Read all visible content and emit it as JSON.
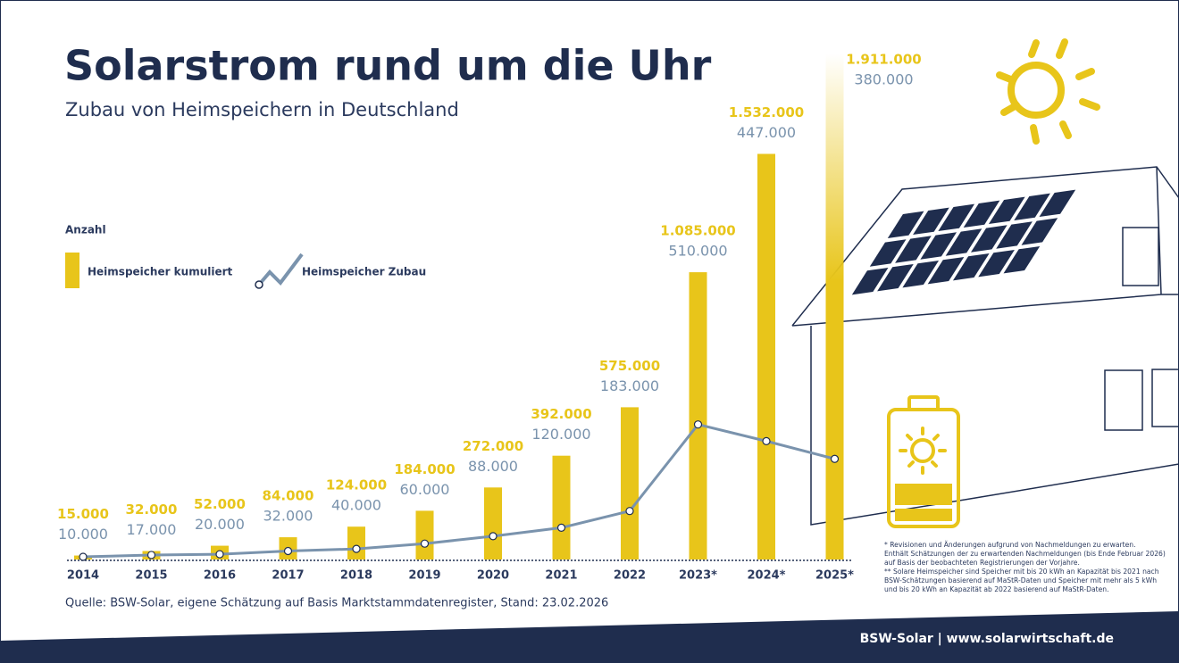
{
  "header": {
    "title": "Solarstrom rund um die Uhr",
    "subtitle": "Zubau von Heimspeichern in Deutschland"
  },
  "chart_data": {
    "type": "bar",
    "legend_title": "Anzahl",
    "categories": [
      "2014",
      "2015",
      "2016",
      "2017",
      "2018",
      "2019",
      "2020",
      "2021",
      "2022",
      "2023*",
      "2024*",
      "2025*"
    ],
    "series": [
      {
        "name": "Heimspeicher kumuliert",
        "type": "bar",
        "color": "#e8c51a",
        "values": [
          15000,
          32000,
          52000,
          84000,
          124000,
          184000,
          272000,
          392000,
          575000,
          1085000,
          1532000,
          1911000
        ],
        "value_labels": [
          "15.000",
          "32.000",
          "52.000",
          "84.000",
          "124.000",
          "184.000",
          "272.000",
          "392.000",
          "575.000",
          "1.085.000",
          "1.532.000",
          "1.911.000"
        ]
      },
      {
        "name": "Heimspeicher Zubau",
        "type": "line",
        "color": "#7a93ad",
        "values": [
          10000,
          17000,
          20000,
          32000,
          40000,
          60000,
          88000,
          120000,
          183000,
          510000,
          447000,
          380000
        ],
        "value_labels": [
          "10.000",
          "17.000",
          "20.000",
          "32.000",
          "40.000",
          "60.000",
          "88.000",
          "120.000",
          "183.000",
          "510.000",
          "447.000",
          "380.000"
        ]
      }
    ]
  },
  "source": "Quelle: BSW-Solar, eigene Schätzung auf Basis Marktstammdatenregister, Stand: 23.02.2026",
  "footnotes": [
    "* Revisionen und Änderungen aufgrund von Nachmeldungen zu erwarten.",
    "Enthält Schätzungen der zu erwartenden Nachmeldungen (bis Ende Februar 2026)",
    "auf Basis der beobachteten Registrierungen der Vorjahre.",
    "** Solare Heimspeicher sind Speicher mit bis 20 kWh an Kapazität bis 2021 nach",
    "BSW-Schätzungen basierend auf MaStR-Daten und Speicher mit mehr als 5 kWh",
    "und bis 20 kWh an Kapazität ab 2022 basierend auf MaStR-Daten."
  ],
  "footer": "BSW-Solar | www.solarwirtschaft.de"
}
